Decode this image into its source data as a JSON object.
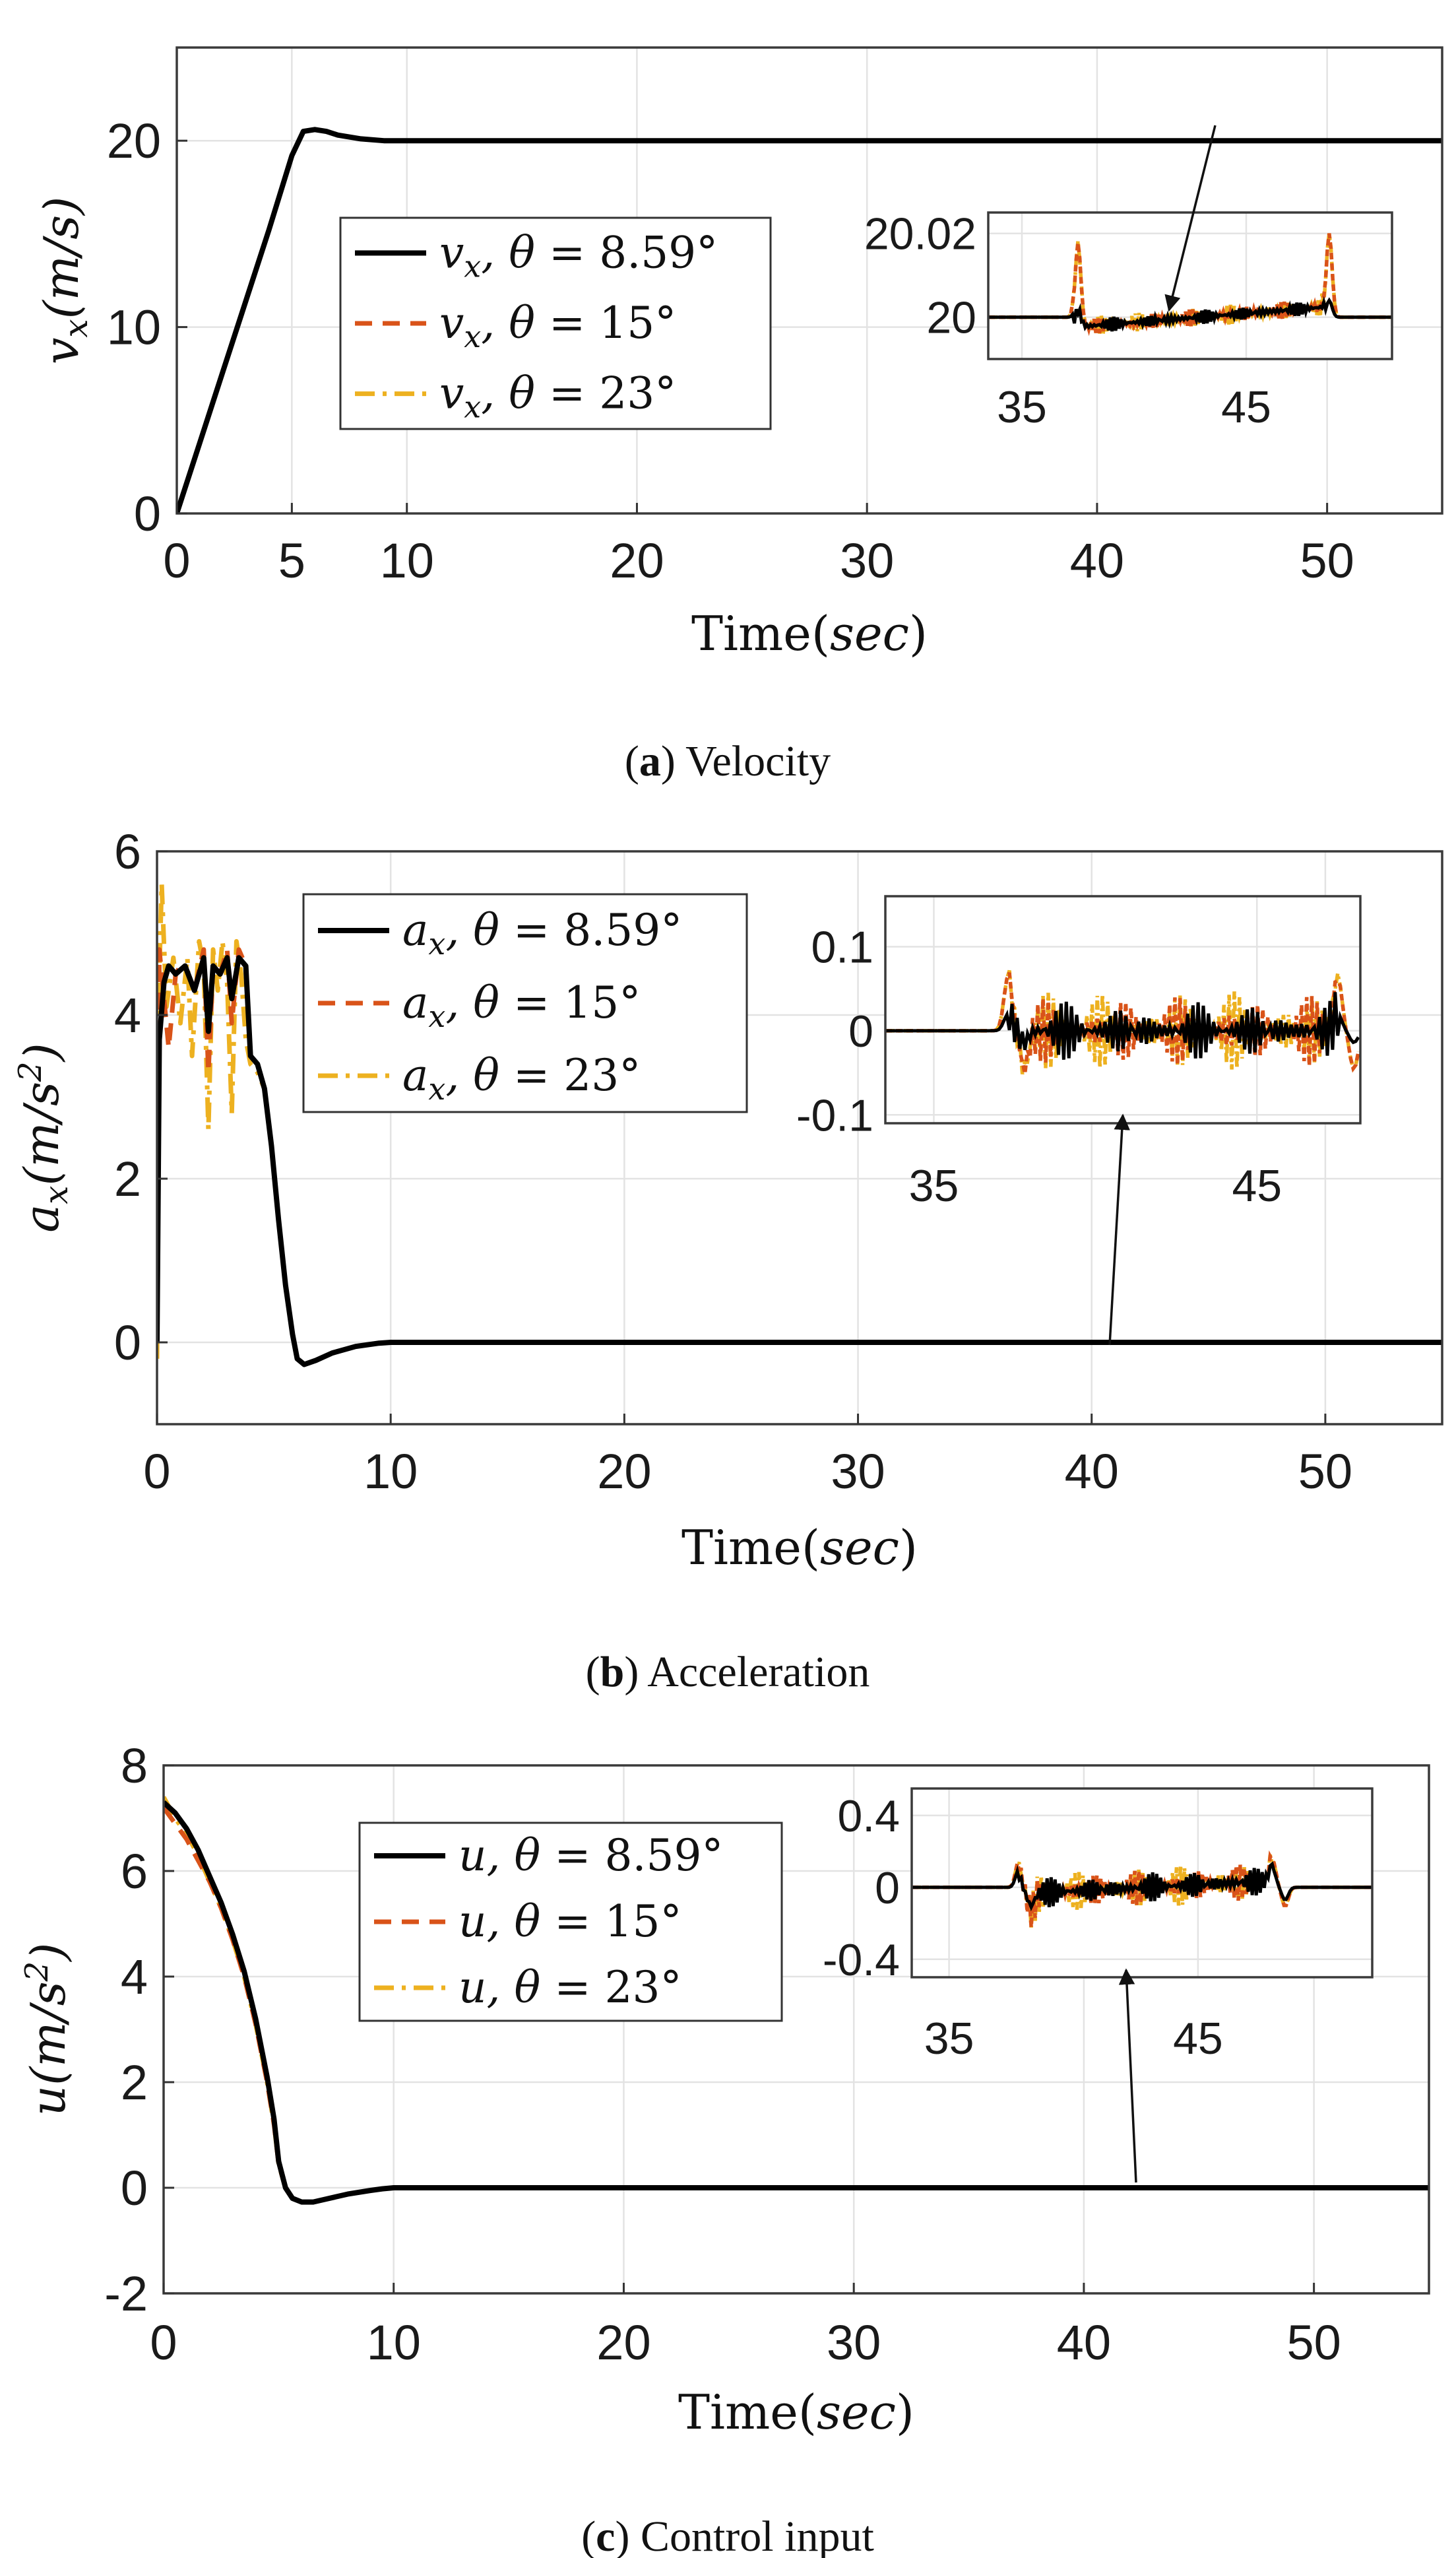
{
  "colors": {
    "theta_8_59": "#000000",
    "theta_15": "#d95319",
    "theta_23": "#edb120"
  },
  "legend_entries": [
    {
      "sym": "x",
      "theta": "8.59°",
      "style": "solid"
    },
    {
      "sym": "x",
      "theta": "15°",
      "style": "dashed"
    },
    {
      "sym": "x",
      "theta": "23°",
      "style": "dashdot"
    }
  ],
  "chart_data": [
    {
      "type": "line",
      "caption_letter": "a",
      "caption_text": "Velocity",
      "xlabel_main": "Time(",
      "xlabel_unit": "sec",
      "xlabel_close": ")",
      "ylabel": "v_x(m/s)",
      "ylabel_base": "v",
      "ylabel_sub": "x",
      "ylabel_unit": "(m/s)",
      "ylabel_sup": "",
      "ylabel_after": "",
      "legend_symbol": "v",
      "legend_sub": "x",
      "xlim": [
        0,
        55
      ],
      "ylim": [
        0,
        25
      ],
      "xticks": [
        0,
        5,
        10,
        20,
        30,
        40,
        50
      ],
      "xtick_labels": [
        "0",
        "5",
        "10",
        "20",
        "30",
        "40",
        "50"
      ],
      "yticks": [
        0,
        10,
        20
      ],
      "ytick_labels": [
        "0",
        "10",
        "20"
      ],
      "grid": true,
      "legend_position": "center-left",
      "series": [
        {
          "name": "v_x, θ = 8.59°",
          "style": "solid",
          "x": [
            0,
            1,
            2,
            3,
            4,
            5,
            5.5,
            6,
            6.5,
            7,
            8,
            9,
            9.5,
            10,
            20,
            30,
            40,
            50,
            55
          ],
          "y": [
            0,
            3.8,
            7.6,
            11.4,
            15.2,
            19.2,
            20.5,
            20.6,
            20.5,
            20.3,
            20.1,
            20.0,
            20.0,
            20.0,
            20,
            20,
            20,
            20,
            20
          ]
        },
        {
          "name": "v_x, θ = 15°",
          "style": "dashed",
          "x": [
            0,
            1,
            2,
            3,
            4,
            5,
            5.5,
            6,
            6.5,
            7,
            8,
            9,
            9.5,
            10,
            20,
            30,
            40,
            50,
            55
          ],
          "y": [
            0,
            3.8,
            7.6,
            11.4,
            15.2,
            19.2,
            20.5,
            20.6,
            20.5,
            20.3,
            20.1,
            20.0,
            20.0,
            20.0,
            20,
            20,
            20,
            20,
            20
          ]
        },
        {
          "name": "v_x, θ = 23°",
          "style": "dashdot",
          "x": [
            0,
            1,
            2,
            3,
            4,
            5,
            5.5,
            6,
            6.5,
            7,
            8,
            9,
            9.5,
            10,
            20,
            30,
            40,
            50,
            55
          ],
          "y": [
            0,
            3.8,
            7.6,
            11.4,
            15.2,
            19.2,
            20.5,
            20.6,
            20.5,
            20.3,
            20.1,
            20.0,
            20.0,
            20.0,
            20,
            20,
            20,
            20,
            20
          ]
        }
      ],
      "inset": {
        "xlim": [
          33.5,
          51.5
        ],
        "ylim": [
          19.99,
          20.025
        ],
        "xticks": [
          35,
          45
        ],
        "xtick_labels": [
          "35",
          "45"
        ],
        "yticks": [
          20,
          20.02
        ],
        "ytick_labels": [
          "20",
          "20.02"
        ],
        "base": 20.0,
        "amp": 0.0025,
        "spike": 0.02,
        "spike_black": 0.004,
        "spike_mode": "peak",
        "band_start": 37.3,
        "band_end": 48.5,
        "drift": 0.0008
      }
    },
    {
      "type": "line",
      "caption_letter": "b",
      "caption_text": "Acceleration",
      "xlabel_main": "Time(",
      "xlabel_unit": "sec",
      "xlabel_close": ")",
      "ylabel": "a_x(m/s^2)",
      "ylabel_base": "a",
      "ylabel_sub": "x",
      "ylabel_unit": "(m/s",
      "ylabel_sup": "2",
      "ylabel_after": ")",
      "legend_symbol": "a",
      "legend_sub": "x",
      "xlim": [
        0,
        55
      ],
      "ylim": [
        -1,
        6
      ],
      "xticks": [
        0,
        10,
        20,
        30,
        40,
        50
      ],
      "xtick_labels": [
        "0",
        "10",
        "20",
        "30",
        "40",
        "50"
      ],
      "yticks": [
        0,
        2,
        4,
        6
      ],
      "ytick_labels": [
        "0",
        "2",
        "4",
        "6"
      ],
      "grid": true,
      "legend_position": "top-left",
      "series": [
        {
          "name": "a_x, θ = 8.59°",
          "style": "solid",
          "x": [
            0,
            0.1,
            0.3,
            0.5,
            0.8,
            1.2,
            1.6,
            2.0,
            2.2,
            2.4,
            2.7,
            3.0,
            3.2,
            3.5,
            3.8,
            4.0,
            4.3,
            4.6,
            4.9,
            5.2,
            5.5,
            5.8,
            6.0,
            6.3,
            6.8,
            7.5,
            8.5,
            9.5,
            10,
            20,
            30,
            40,
            50,
            55
          ],
          "y": [
            0,
            3.7,
            4.4,
            4.6,
            4.5,
            4.6,
            4.3,
            4.7,
            3.8,
            4.6,
            4.5,
            4.7,
            4.2,
            4.7,
            4.6,
            3.5,
            3.4,
            3.1,
            2.4,
            1.5,
            0.7,
            0.1,
            -0.2,
            -0.27,
            -0.22,
            -0.13,
            -0.05,
            -0.01,
            0,
            0,
            0,
            0,
            0,
            0
          ]
        },
        {
          "name": "a_x, θ = 15°",
          "style": "dashed",
          "x": [
            0,
            0.1,
            0.3,
            0.5,
            0.8,
            1.0,
            1.2,
            1.6,
            2.0,
            2.2,
            2.4,
            2.7,
            3.0,
            3.2,
            3.5,
            3.8,
            4.0,
            4.3,
            4.6,
            4.9,
            5.2,
            5.5,
            5.8,
            6.0,
            6.3,
            6.8,
            7.5,
            8.5,
            9.5,
            10,
            20,
            30,
            40,
            50,
            55
          ],
          "y": [
            0,
            4.8,
            4.2,
            3.6,
            4.5,
            4.6,
            4.6,
            4.3,
            4.8,
            3.3,
            4.6,
            4.5,
            4.8,
            3.9,
            4.8,
            4.6,
            3.5,
            3.4,
            3.1,
            2.4,
            1.5,
            0.7,
            0.1,
            -0.2,
            -0.27,
            -0.22,
            -0.13,
            -0.05,
            -0.01,
            0,
            0,
            0,
            0,
            0,
            0
          ]
        },
        {
          "name": "a_x, θ = 23°",
          "style": "dashdot",
          "x": [
            0,
            0.1,
            0.2,
            0.4,
            0.7,
            1.0,
            1.3,
            1.5,
            1.8,
            2.0,
            2.2,
            2.4,
            2.6,
            2.8,
            3.0,
            3.2,
            3.4,
            3.6,
            3.8,
            4.0,
            4.3,
            4.6,
            4.9,
            5.2,
            5.5,
            5.8,
            6.0,
            6.3,
            6.8,
            7.5,
            8.5,
            9.5,
            10,
            20,
            30,
            40,
            50,
            55
          ],
          "y": [
            -0.2,
            4.5,
            5.6,
            4.1,
            4.7,
            3.9,
            4.7,
            3.5,
            4.9,
            4.6,
            2.6,
            4.8,
            4.3,
            4.9,
            4.4,
            2.8,
            4.9,
            4.5,
            3.7,
            3.4,
            3.3,
            3.1,
            2.4,
            1.5,
            0.7,
            0.1,
            -0.2,
            -0.27,
            -0.22,
            -0.13,
            -0.05,
            -0.01,
            0,
            0,
            0,
            0,
            0,
            0
          ]
        }
      ],
      "inset": {
        "xlim": [
          33.5,
          48.2
        ],
        "ylim": [
          -0.11,
          0.16
        ],
        "xticks": [
          35,
          45
        ],
        "xtick_labels": [
          "35",
          "45"
        ],
        "yticks": [
          -0.1,
          0,
          0.1
        ],
        "ytick_labels": [
          "-0.1",
          "0",
          "0.1"
        ],
        "base": 0.0,
        "amp": 0.05,
        "spike": 0.065,
        "spike_black": 0.02,
        "spike_mode": "bipolar",
        "band_start": 37.3,
        "band_end": 47.5,
        "drift": 0
      }
    },
    {
      "type": "line",
      "caption_letter": "c",
      "caption_text": "Control input",
      "xlabel_main": "Time(",
      "xlabel_unit": "sec",
      "xlabel_close": ")",
      "ylabel": "u(m/s^2)",
      "ylabel_base": "u",
      "ylabel_sub": "",
      "ylabel_unit": "(m/s",
      "ylabel_sup": "2",
      "ylabel_after": ")",
      "legend_symbol": "u",
      "legend_sub": "",
      "xlim": [
        0,
        55
      ],
      "ylim": [
        -2,
        8
      ],
      "xticks": [
        0,
        10,
        20,
        30,
        40,
        50
      ],
      "xtick_labels": [
        "0",
        "10",
        "20",
        "30",
        "40",
        "50"
      ],
      "yticks": [
        -2,
        0,
        2,
        4,
        6,
        8
      ],
      "ytick_labels": [
        "-2",
        "0",
        "2",
        "4",
        "6",
        "8"
      ],
      "grid": true,
      "legend_position": "top-left",
      "series": [
        {
          "name": "u, θ = 8.59°",
          "style": "solid",
          "x": [
            0,
            0.5,
            1,
            1.5,
            2,
            2.5,
            3,
            3.5,
            4,
            4.5,
            4.8,
            5.0,
            5.3,
            5.6,
            6.0,
            6.5,
            7,
            8,
            9,
            9.5,
            10,
            20,
            30,
            40,
            50,
            55
          ],
          "y": [
            7.3,
            7.1,
            6.8,
            6.4,
            5.9,
            5.4,
            4.8,
            4.1,
            3.2,
            2.1,
            1.3,
            0.5,
            0.0,
            -0.2,
            -0.27,
            -0.27,
            -0.22,
            -0.12,
            -0.05,
            -0.02,
            0,
            0,
            0,
            0,
            0,
            0
          ]
        },
        {
          "name": "u, θ = 15°",
          "style": "dashed",
          "x": [
            0,
            0.5,
            1,
            1.5,
            2,
            2.5,
            3,
            3.5,
            4,
            4.5,
            4.8,
            5.0,
            5.3,
            5.6,
            6.0,
            6.5,
            7,
            8,
            9,
            9.5,
            10,
            20,
            30,
            40,
            50,
            55
          ],
          "y": [
            7.2,
            6.9,
            6.6,
            6.2,
            5.8,
            5.3,
            4.7,
            4.0,
            3.1,
            2.0,
            1.2,
            0.45,
            0.0,
            -0.2,
            -0.27,
            -0.27,
            -0.22,
            -0.12,
            -0.05,
            -0.02,
            0,
            0,
            0,
            0,
            0,
            0
          ]
        },
        {
          "name": "u, θ = 23°",
          "style": "dashdot",
          "x": [
            0,
            0.5,
            1,
            1.5,
            2,
            2.5,
            3,
            3.5,
            4,
            4.5,
            4.8,
            5.0,
            5.3,
            5.6,
            6.0,
            6.5,
            7,
            8,
            9,
            9.5,
            10,
            20,
            30,
            40,
            50,
            55
          ],
          "y": [
            7.4,
            7.0,
            6.7,
            6.3,
            5.8,
            5.3,
            4.7,
            4.0,
            3.1,
            2.0,
            1.2,
            0.45,
            0.0,
            -0.2,
            -0.27,
            -0.27,
            -0.22,
            -0.12,
            -0.05,
            -0.02,
            0,
            0,
            0,
            0,
            0,
            0
          ]
        }
      ],
      "inset": {
        "xlim": [
          33.5,
          52
        ],
        "ylim": [
          -0.5,
          0.55
        ],
        "xticks": [
          35,
          45
        ],
        "xtick_labels": [
          "35",
          "45"
        ],
        "yticks": [
          -0.4,
          0,
          0.4
        ],
        "ytick_labels": [
          "-0.4",
          "0",
          "0.4"
        ],
        "base": 0.0,
        "amp": 0.12,
        "spike": 0.15,
        "spike_black": 0.1,
        "spike_mode": "bipolar",
        "band_start": 37.8,
        "band_end": 48.0,
        "drift": 0.012
      }
    }
  ]
}
